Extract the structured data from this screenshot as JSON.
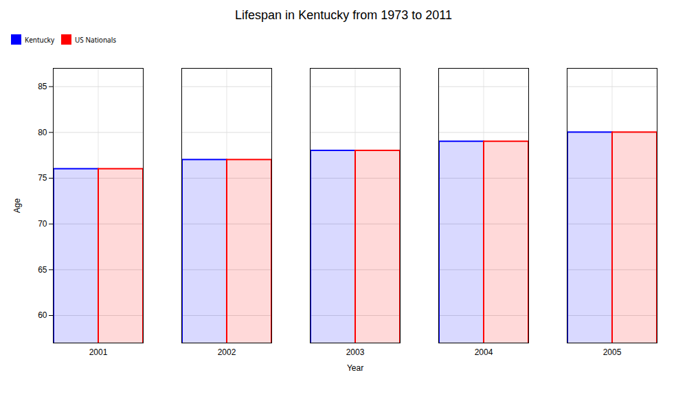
{
  "chart_data": {
    "type": "bar",
    "title": "Lifespan in Kentucky from 1973 to 2011",
    "xlabel": "Year",
    "ylabel": "Age",
    "categories": [
      "2001",
      "2002",
      "2003",
      "2004",
      "2005"
    ],
    "series": [
      {
        "name": "Kentucky",
        "color": "#0000ff",
        "values": [
          76,
          77,
          78,
          79,
          80
        ]
      },
      {
        "name": "US Nationals",
        "color": "#ff0000",
        "values": [
          76,
          77,
          78,
          79,
          80
        ]
      }
    ],
    "ylim": [
      57,
      87
    ],
    "yticks": [
      60,
      65,
      70,
      75,
      80,
      85
    ],
    "grid": true,
    "legend": "top"
  }
}
